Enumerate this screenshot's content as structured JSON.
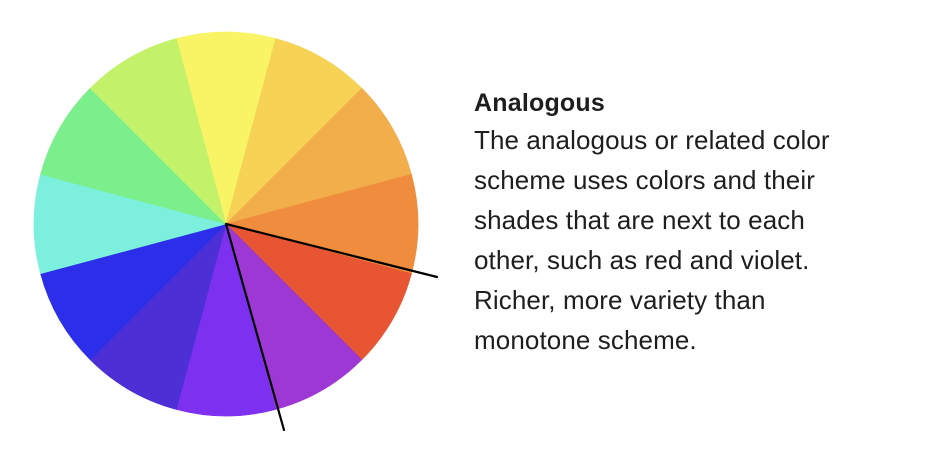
{
  "wheel": {
    "segment_colors": [
      "#f9f466",
      "#f6d355",
      "#f2ae4a",
      "#ef8c3e",
      "#e85532",
      "#9e38d4",
      "#7d30ef",
      "#4d2fd6",
      "#2c2ee9",
      "#7cf0dc",
      "#7aef8c",
      "#c3f26a"
    ],
    "highlight_line_color": "#000000"
  },
  "caption": {
    "title": "Analogous",
    "body": "The analogous or related color\nscheme uses colors and their\nshades that are next to each\nother, such as red  and violet.\nRicher, more variety than\nmonotone scheme."
  }
}
